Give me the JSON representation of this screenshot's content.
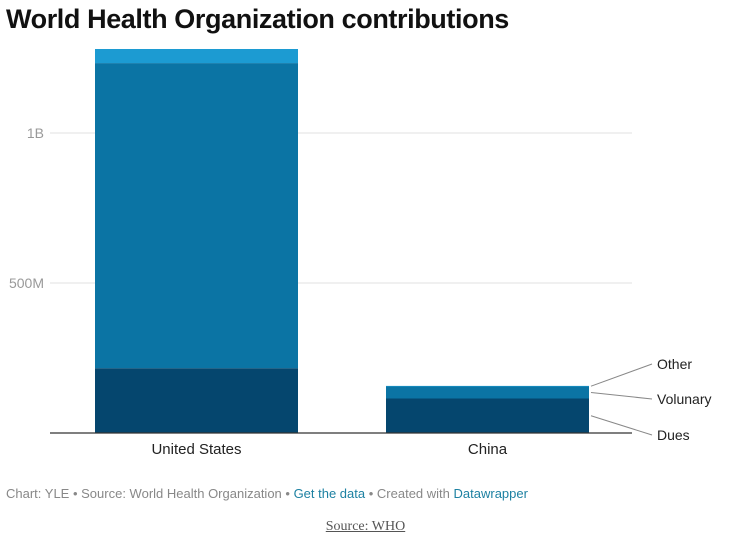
{
  "title": "World Health Organization contributions",
  "chart_data": {
    "type": "bar",
    "stacked": true,
    "title": "World Health Organization contributions",
    "categories": [
      "United States",
      "China"
    ],
    "series": [
      {
        "name": "Dues",
        "values": [
          216000000,
          115000000
        ],
        "color": "#05466e"
      },
      {
        "name": "Volunary",
        "values": [
          1017000000,
          40000000
        ],
        "color": "#0b74a4"
      },
      {
        "name": "Other",
        "values": [
          47000000,
          2000000
        ],
        "color": "#1c9bd2"
      }
    ],
    "y_ticks": [
      {
        "value": 500000000,
        "label": "500M"
      },
      {
        "value": 1000000000,
        "label": "1B"
      }
    ],
    "ylim": [
      0,
      1300000000
    ],
    "grid": true,
    "legend": "right-side labels next to China bar"
  },
  "footer": {
    "chart": "Chart: YLE",
    "source": "Source: World Health Organization",
    "get_data": "Get the data",
    "created_with": "Created with",
    "datawrapper": "Datawrapper",
    "sep": " • "
  },
  "caption": "Source: WHO"
}
